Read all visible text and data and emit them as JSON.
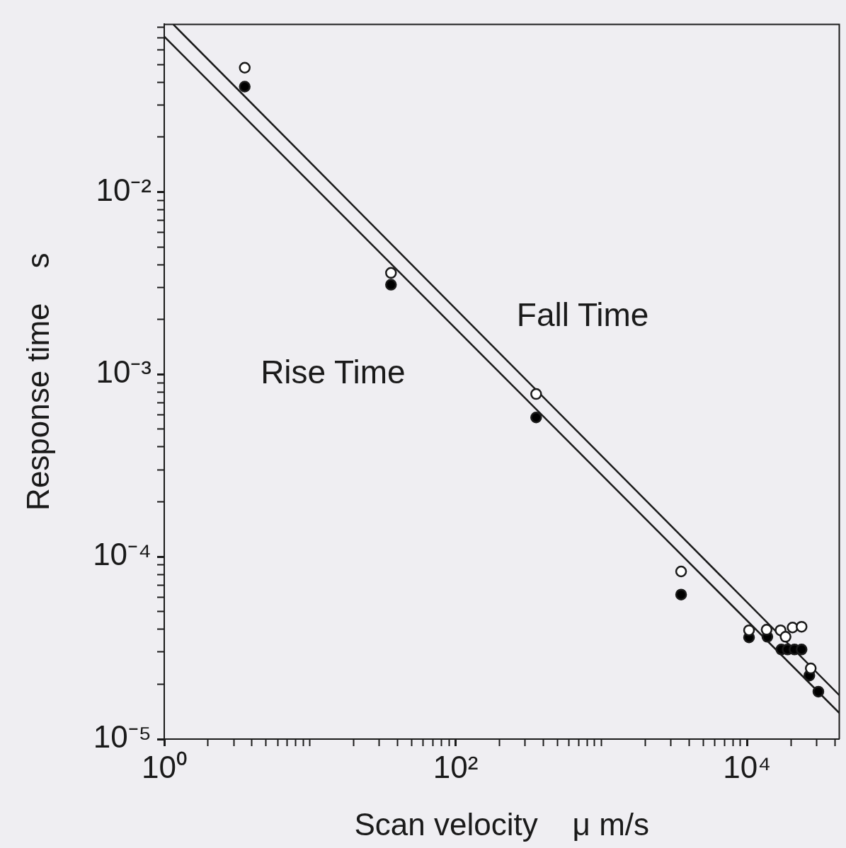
{
  "chart_data": {
    "type": "scatter",
    "xlabel": "Scan velocity    μ m/s",
    "ylabel": "Response time    s",
    "log": "xy",
    "marker": "circle",
    "xlim": [
      1,
      43000
    ],
    "ylim": [
      1e-05,
      0.083
    ],
    "xticks": [
      {
        "value": 1,
        "label": "10⁰"
      },
      {
        "value": 2,
        "label": null
      },
      {
        "value": 3,
        "label": null
      },
      {
        "value": 4,
        "label": null
      },
      {
        "value": 5,
        "label": null
      },
      {
        "value": 6,
        "label": null
      },
      {
        "value": 7,
        "label": null
      },
      {
        "value": 8,
        "label": null
      },
      {
        "value": 9,
        "label": null
      },
      {
        "value": 10,
        "label": null
      },
      {
        "value": 20,
        "label": null
      },
      {
        "value": 30,
        "label": null
      },
      {
        "value": 40,
        "label": null
      },
      {
        "value": 50,
        "label": null
      },
      {
        "value": 60,
        "label": null
      },
      {
        "value": 70,
        "label": null
      },
      {
        "value": 80,
        "label": null
      },
      {
        "value": 90,
        "label": null
      },
      {
        "value": 100,
        "label": "10²"
      },
      {
        "value": 200,
        "label": null
      },
      {
        "value": 300,
        "label": null
      },
      {
        "value": 400,
        "label": null
      },
      {
        "value": 500,
        "label": null
      },
      {
        "value": 600,
        "label": null
      },
      {
        "value": 700,
        "label": null
      },
      {
        "value": 800,
        "label": null
      },
      {
        "value": 900,
        "label": null
      },
      {
        "value": 1000,
        "label": null
      },
      {
        "value": 2000,
        "label": null
      },
      {
        "value": 3000,
        "label": null
      },
      {
        "value": 4000,
        "label": null
      },
      {
        "value": 5000,
        "label": null
      },
      {
        "value": 6000,
        "label": null
      },
      {
        "value": 7000,
        "label": null
      },
      {
        "value": 8000,
        "label": null
      },
      {
        "value": 9000,
        "label": null
      },
      {
        "value": 10000,
        "label": "10⁴"
      },
      {
        "value": 20000,
        "label": null
      },
      {
        "value": 30000,
        "label": null
      },
      {
        "value": 40000,
        "label": null
      }
    ],
    "yticks": [
      {
        "value": 1e-05,
        "label": "10⁻⁵"
      },
      {
        "value": 2e-05,
        "label": null
      },
      {
        "value": 3e-05,
        "label": null
      },
      {
        "value": 4e-05,
        "label": null
      },
      {
        "value": 5e-05,
        "label": null
      },
      {
        "value": 6e-05,
        "label": null
      },
      {
        "value": 7e-05,
        "label": null
      },
      {
        "value": 8e-05,
        "label": null
      },
      {
        "value": 9e-05,
        "label": null
      },
      {
        "value": 0.0001,
        "label": "10⁻⁴"
      },
      {
        "value": 0.0002,
        "label": null
      },
      {
        "value": 0.0003,
        "label": null
      },
      {
        "value": 0.0004,
        "label": null
      },
      {
        "value": 0.0005,
        "label": null
      },
      {
        "value": 0.0006,
        "label": null
      },
      {
        "value": 0.0007,
        "label": null
      },
      {
        "value": 0.0008,
        "label": null
      },
      {
        "value": 0.0009,
        "label": null
      },
      {
        "value": 0.001,
        "label": "10⁻³"
      },
      {
        "value": 0.002,
        "label": null
      },
      {
        "value": 0.003,
        "label": null
      },
      {
        "value": 0.004,
        "label": null
      },
      {
        "value": 0.005,
        "label": null
      },
      {
        "value": 0.006,
        "label": null
      },
      {
        "value": 0.007,
        "label": null
      },
      {
        "value": 0.008,
        "label": null
      },
      {
        "value": 0.009,
        "label": null
      },
      {
        "value": 0.01,
        "label": "10⁻²"
      },
      {
        "value": 0.02,
        "label": null
      },
      {
        "value": 0.03,
        "label": null
      },
      {
        "value": 0.04,
        "label": null
      },
      {
        "value": 0.05,
        "label": null
      },
      {
        "value": 0.06,
        "label": null
      },
      {
        "value": 0.07,
        "label": null
      },
      {
        "value": 0.08,
        "label": null
      }
    ],
    "annotations": [
      "Rise Time",
      "Fall Time"
    ],
    "series": [
      {
        "type": "scatter",
        "color": "#ffffff",
        "x": [
          3.57,
          36,
          357,
          3530,
          10330,
          13640,
          17000,
          18400,
          20550,
          23700,
          27400
        ],
        "values": [
          0.048,
          0.0036,
          0.00078,
          8.3e-05,
          3.95e-05,
          3.98e-05,
          3.95e-05,
          3.64e-05,
          4.09e-05,
          4.13e-05,
          2.44e-05
        ]
      },
      {
        "type": "scatter",
        "color": "#000000",
        "x": [
          3.57,
          36,
          357,
          3530,
          10330,
          13800,
          17200,
          19000,
          21200,
          23700,
          26800,
          30900
        ],
        "values": [
          0.0378,
          0.0031,
          0.00058,
          6.2e-05,
          3.61e-05,
          3.64e-05,
          3.1e-05,
          3.1e-05,
          3.1e-05,
          3.1e-05,
          2.23e-05,
          1.82e-05
        ]
      },
      {
        "type": "line",
        "marker": "none",
        "color": "#1a1a1a",
        "x": [
          1.155,
          43000
        ],
        "values": [
          0.0828,
          1.74e-05
        ]
      },
      {
        "type": "line",
        "marker": "none",
        "color": "#1a1a1a",
        "x": [
          1,
          43000
        ],
        "values": [
          0.0711,
          1.39e-05
        ]
      }
    ]
  }
}
